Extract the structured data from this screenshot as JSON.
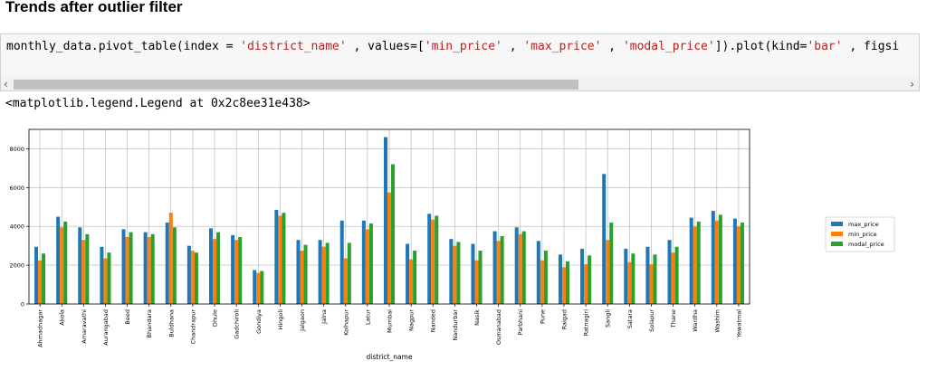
{
  "heading": "Trends after outlier filter",
  "code": {
    "p1": "monthly_data.pivot_table(index = ",
    "s1": "'district_name'",
    "p2": " , values=[",
    "s2": "'min_price'",
    "p3": " , ",
    "s3": "'max_price'",
    "p4": " , ",
    "s4": "'modal_price'",
    "p5": "]).plot(kind=",
    "s5": "'bar'",
    "p6": " , figsi"
  },
  "scroll": {
    "left_arrow": "‹",
    "right_arrow": "›"
  },
  "output_text": "<matplotlib.legend.Legend at 0x2c8ee31e438>",
  "colors": {
    "max_price": "#1f77b4",
    "min_price": "#ff7f0e",
    "modal_price": "#2ca02c"
  },
  "chart_data": {
    "type": "bar",
    "xlabel": "district_name",
    "ylabel": "",
    "ylim": [
      0,
      9000
    ],
    "yticks": [
      0,
      2000,
      4000,
      6000,
      8000
    ],
    "grid": true,
    "legend_placement": "right",
    "categories": [
      "Ahmadnagar",
      "Akola",
      "Amaravathi",
      "Aurangabad",
      "Beed",
      "Bhandara",
      "Buldhana",
      "Chandrapur",
      "Dhule",
      "Gadchiroli",
      "Gondiya",
      "Hingoli",
      "Jalgaon",
      "Jalna",
      "Kolhapur",
      "Latur",
      "Mumbai",
      "Nagpur",
      "Nanded",
      "Nandurbar",
      "Nasik",
      "Osmanabad",
      "Parbhani",
      "Pune",
      "Raigad",
      "Ratnagiri",
      "Sangli",
      "Satara",
      "Solapur",
      "Thane",
      "Wardha",
      "Washim",
      "Yewatmal"
    ],
    "series": [
      {
        "name": "max_price",
        "color": "#1f77b4",
        "values": [
          2950,
          4500,
          3950,
          2950,
          3850,
          3700,
          4200,
          3000,
          3900,
          3550,
          1750,
          4850,
          3300,
          3300,
          4300,
          4300,
          8600,
          3100,
          4650,
          3350,
          3100,
          3750,
          3950,
          3250,
          2550,
          2850,
          6700,
          2850,
          2950,
          3300,
          4450,
          4800,
          4400
        ]
      },
      {
        "name": "min_price",
        "color": "#ff7f0e",
        "values": [
          2250,
          3950,
          3300,
          2350,
          3450,
          3450,
          4700,
          2750,
          3350,
          3300,
          1600,
          4550,
          2750,
          2950,
          2350,
          3850,
          5750,
          2300,
          4350,
          3000,
          2250,
          3250,
          3600,
          2250,
          1900,
          2050,
          3300,
          2150,
          2050,
          2650,
          4000,
          4300,
          4000
        ]
      },
      {
        "name": "modal_price",
        "color": "#2ca02c",
        "values": [
          2600,
          4250,
          3600,
          2650,
          3700,
          3600,
          3950,
          2650,
          3700,
          3450,
          1700,
          4700,
          3050,
          3150,
          3150,
          4150,
          7200,
          2750,
          4550,
          3200,
          2750,
          3500,
          3750,
          2750,
          2200,
          2500,
          4200,
          2600,
          2550,
          2950,
          4250,
          4600,
          4200
        ]
      }
    ]
  }
}
